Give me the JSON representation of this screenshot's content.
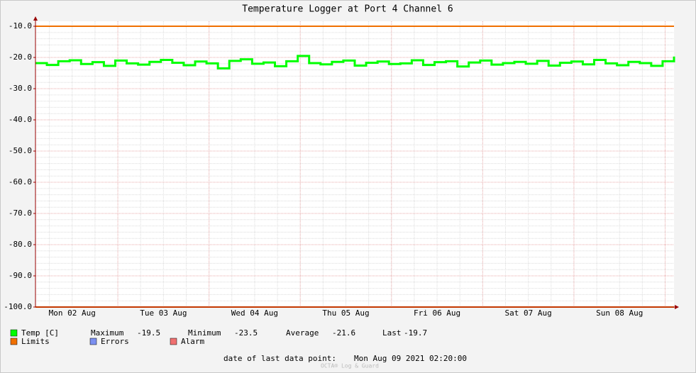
{
  "chart_data": {
    "type": "line",
    "title": "Temperature Logger at Port 4 Channel 6",
    "x": [
      "2021-08-02T02:20",
      "2021-08-02T05:20",
      "2021-08-02T08:20",
      "2021-08-02T11:20",
      "2021-08-02T14:20",
      "2021-08-02T17:20",
      "2021-08-02T20:20",
      "2021-08-02T23:20",
      "2021-08-03T02:20",
      "2021-08-03T05:20",
      "2021-08-03T08:20",
      "2021-08-03T11:20",
      "2021-08-03T14:20",
      "2021-08-03T17:20",
      "2021-08-03T20:20",
      "2021-08-03T23:20",
      "2021-08-04T02:20",
      "2021-08-04T05:20",
      "2021-08-04T08:20",
      "2021-08-04T11:20",
      "2021-08-04T14:20",
      "2021-08-04T17:20",
      "2021-08-04T20:20",
      "2021-08-04T23:20",
      "2021-08-05T02:20",
      "2021-08-05T05:20",
      "2021-08-05T08:20",
      "2021-08-05T11:20",
      "2021-08-05T14:20",
      "2021-08-05T17:20",
      "2021-08-05T20:20",
      "2021-08-05T23:20",
      "2021-08-06T02:20",
      "2021-08-06T05:20",
      "2021-08-06T08:20",
      "2021-08-06T11:20",
      "2021-08-06T14:20",
      "2021-08-06T17:20",
      "2021-08-06T20:20",
      "2021-08-06T23:20",
      "2021-08-07T02:20",
      "2021-08-07T05:20",
      "2021-08-07T08:20",
      "2021-08-07T11:20",
      "2021-08-07T14:20",
      "2021-08-07T17:20",
      "2021-08-07T20:20",
      "2021-08-07T23:20",
      "2021-08-08T02:20",
      "2021-08-08T05:20",
      "2021-08-08T08:20",
      "2021-08-08T11:20",
      "2021-08-08T14:20",
      "2021-08-08T17:20",
      "2021-08-08T20:20",
      "2021-08-08T23:20",
      "2021-08-09T02:20"
    ],
    "series": [
      {
        "name": "Temp [C]",
        "color": "#00ff00",
        "values": [
          -21.8,
          -22.4,
          -21.2,
          -20.9,
          -22.1,
          -21.5,
          -22.7,
          -21.0,
          -21.9,
          -22.3,
          -21.4,
          -20.8,
          -21.7,
          -22.5,
          -21.3,
          -21.9,
          -23.5,
          -21.1,
          -20.6,
          -22.0,
          -21.6,
          -22.8,
          -21.2,
          -19.5,
          -21.8,
          -22.2,
          -21.4,
          -21.0,
          -22.6,
          -21.7,
          -21.3,
          -22.1,
          -21.9,
          -20.9,
          -22.4,
          -21.5,
          -21.2,
          -22.9,
          -21.6,
          -21.0,
          -22.3,
          -21.8,
          -21.4,
          -22.0,
          -21.1,
          -22.6,
          -21.7,
          -21.3,
          -22.2,
          -20.8,
          -21.9,
          -22.5,
          -21.4,
          -21.8,
          -22.7,
          -21.2,
          -19.7
        ]
      }
    ],
    "limits": {
      "name": "Limits",
      "color": "#f07000",
      "values": [
        -10,
        -100
      ]
    },
    "other_legend": [
      {
        "name": "Errors",
        "color": "#7b8ff0"
      },
      {
        "name": "Alarm",
        "color": "#f07070"
      }
    ],
    "stats": [
      {
        "label": "Maximum",
        "value": -19.5
      },
      {
        "label": "Minimum",
        "value": -23.5
      },
      {
        "label": "Average",
        "value": -21.6
      },
      {
        "label": "Last",
        "value": -19.7
      }
    ],
    "xlim": [
      "2021-08-02T02:20",
      "2021-08-09T02:20"
    ],
    "xticks": [
      {
        "value": "2021-08-02T12:00",
        "label": "Mon 02 Aug"
      },
      {
        "value": "2021-08-03T12:00",
        "label": "Tue 03 Aug"
      },
      {
        "value": "2021-08-04T12:00",
        "label": "Wed 04 Aug"
      },
      {
        "value": "2021-08-05T12:00",
        "label": "Thu 05 Aug"
      },
      {
        "value": "2021-08-06T12:00",
        "label": "Fri 06 Aug"
      },
      {
        "value": "2021-08-07T12:00",
        "label": "Sat 07 Aug"
      },
      {
        "value": "2021-08-08T12:00",
        "label": "Sun 08 Aug"
      }
    ],
    "xgrid_major": [
      "2021-08-03T00:00",
      "2021-08-04T00:00",
      "2021-08-05T00:00",
      "2021-08-06T00:00",
      "2021-08-07T00:00",
      "2021-08-08T00:00",
      "2021-08-09T00:00"
    ],
    "ylim": [
      -100,
      -8.4
    ],
    "yticks": [
      {
        "value": -10,
        "label": "-10.0"
      },
      {
        "value": -20,
        "label": "-20.0"
      },
      {
        "value": -30,
        "label": "-30.0"
      },
      {
        "value": -40,
        "label": "-40.0"
      },
      {
        "value": -50,
        "label": "-50.0"
      },
      {
        "value": -60,
        "label": "-60.0"
      },
      {
        "value": -70,
        "label": "-70.0"
      },
      {
        "value": -80,
        "label": "-80.0"
      },
      {
        "value": -90,
        "label": "-90.0"
      },
      {
        "value": -100,
        "label": "-100.0"
      }
    ],
    "minor_grid": {
      "y_step": 2,
      "x_step_hours": 6
    },
    "grid": true,
    "last_point_label": "date of last data point:",
    "last_point_date": "Mon Aug 09 2021 02:20:00",
    "watermark": "OCTA® Log & Guard"
  }
}
